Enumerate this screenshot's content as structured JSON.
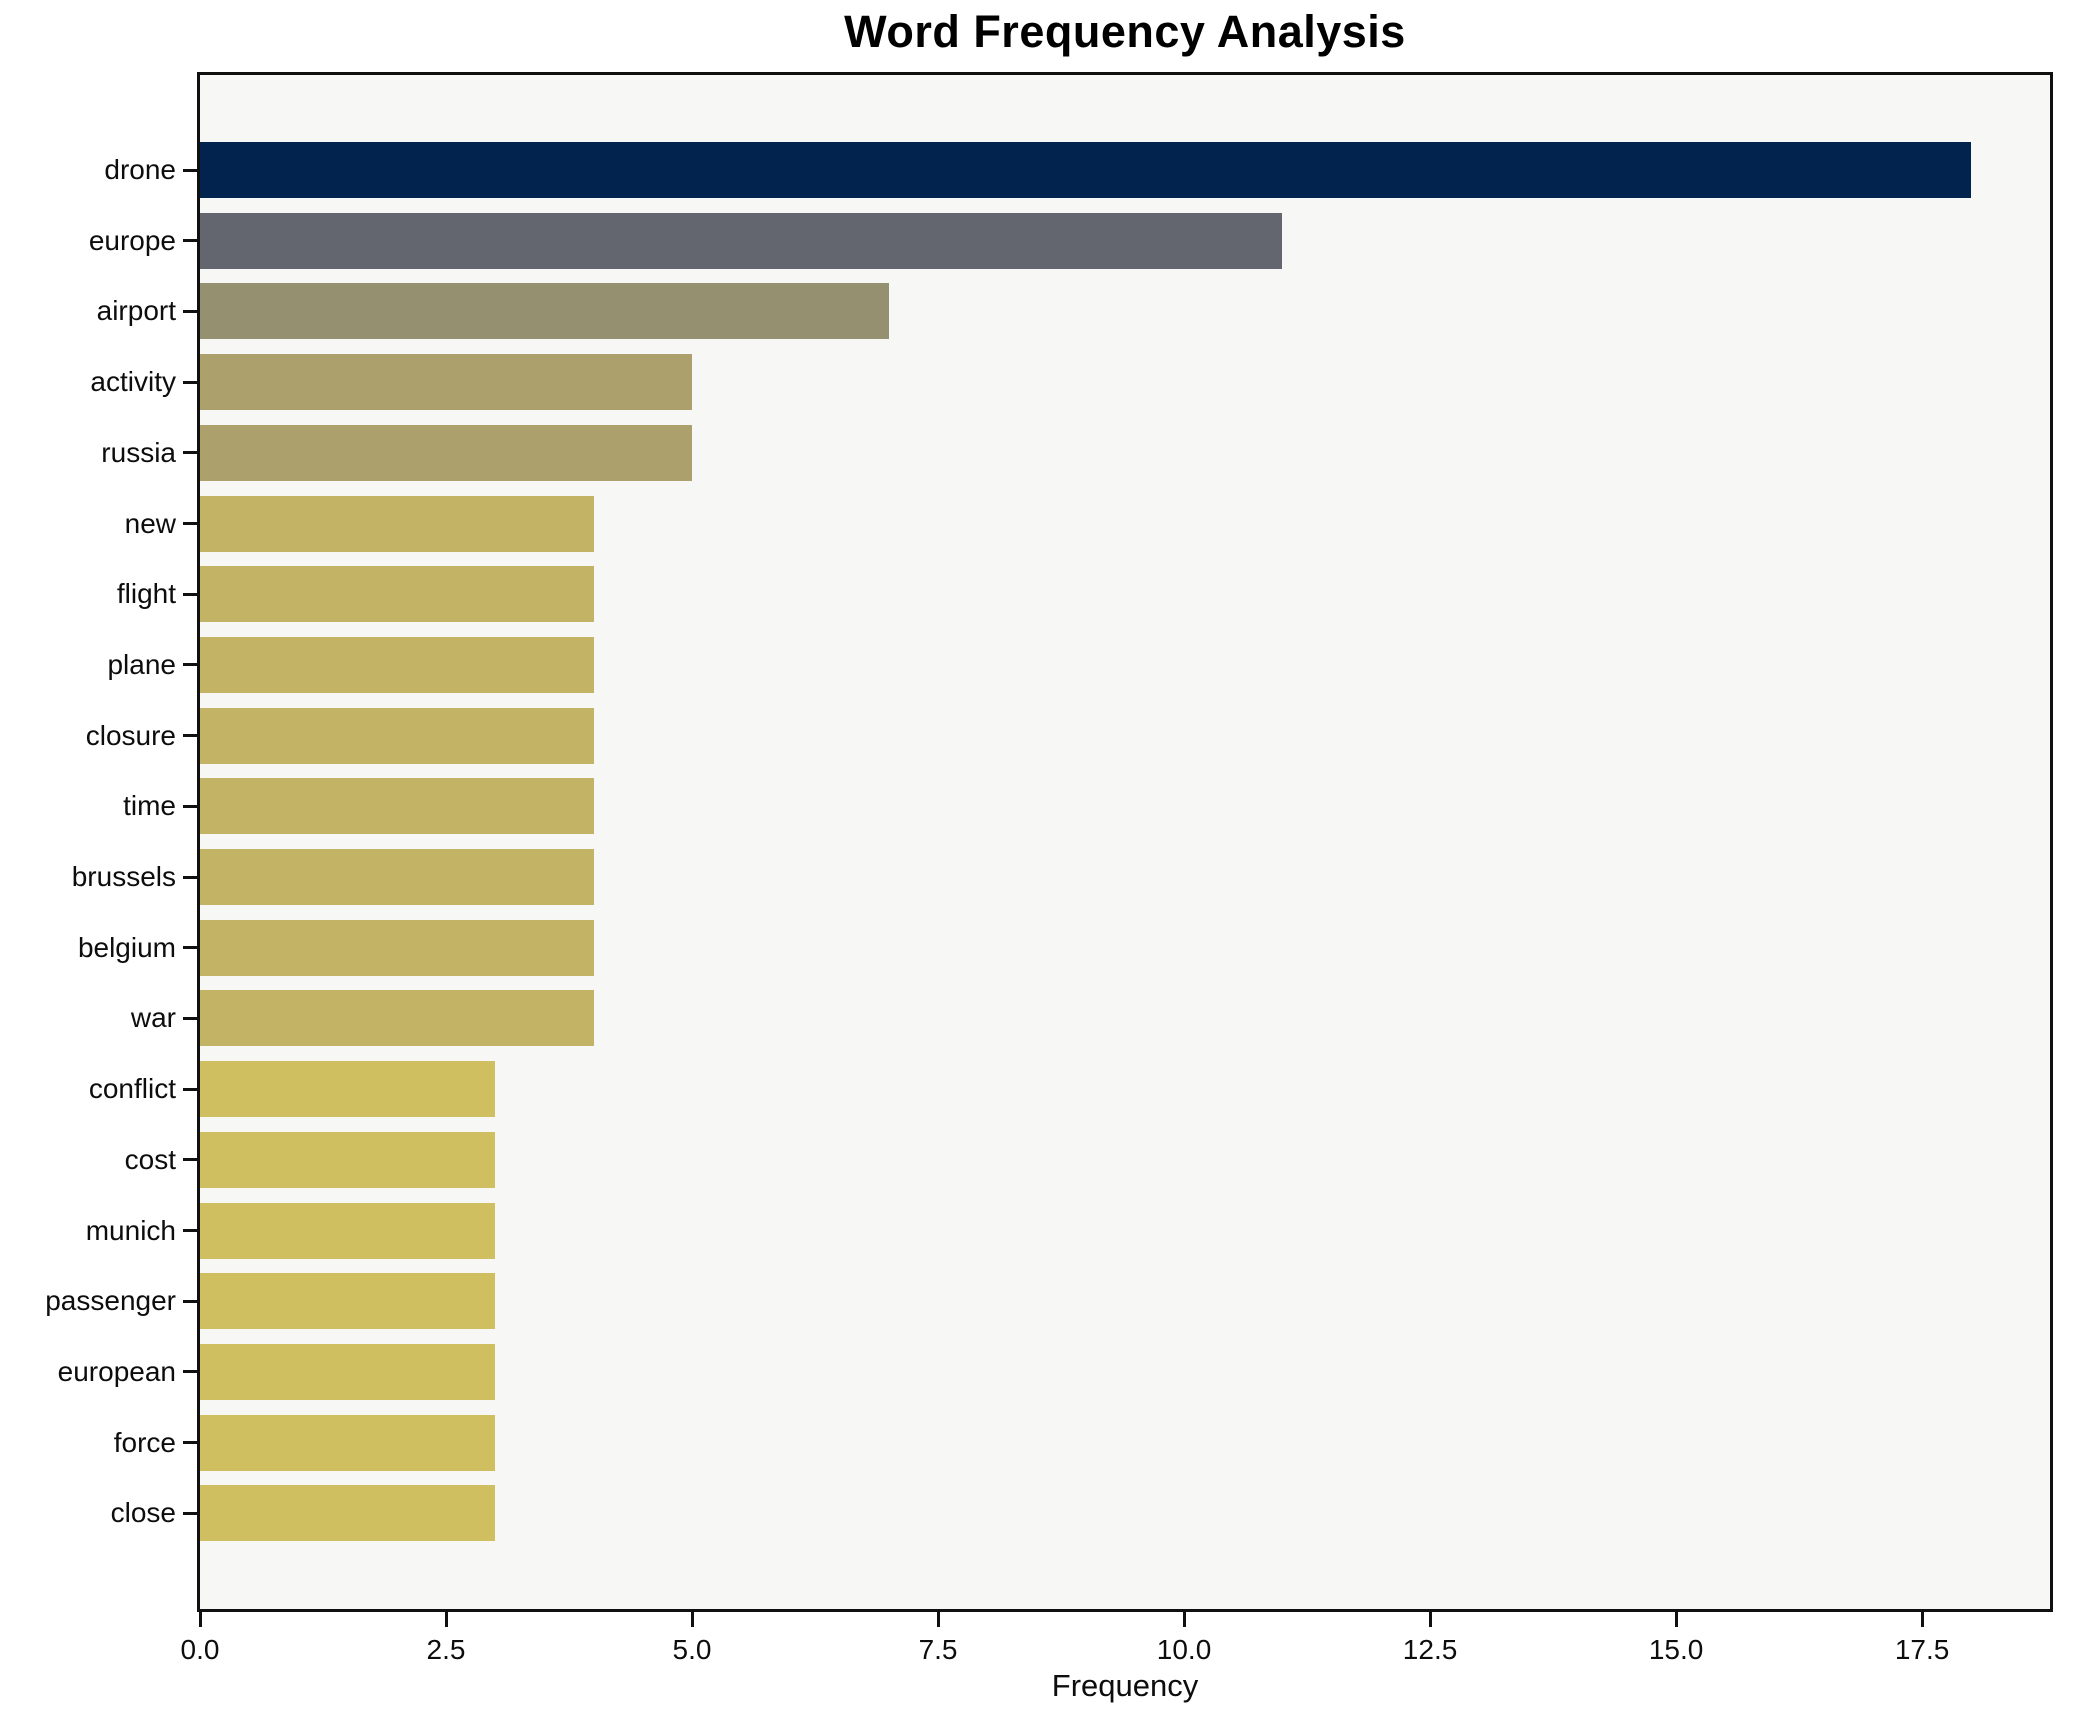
{
  "chart_data": {
    "type": "bar",
    "orientation": "horizontal",
    "title": "Word Frequency Analysis",
    "xlabel": "Frequency",
    "ylabel": "",
    "categories": [
      "drone",
      "europe",
      "airport",
      "activity",
      "russia",
      "new",
      "flight",
      "plane",
      "closure",
      "time",
      "brussels",
      "belgium",
      "war",
      "conflict",
      "cost",
      "munich",
      "passenger",
      "european",
      "force",
      "close"
    ],
    "values": [
      18,
      11,
      7,
      5,
      5,
      4,
      4,
      4,
      4,
      4,
      4,
      4,
      4,
      3,
      3,
      3,
      3,
      3,
      3,
      3
    ],
    "bar_colors": [
      "#02234e",
      "#63656f",
      "#95906f",
      "#aca16c",
      "#aca16c",
      "#c2b365",
      "#c2b365",
      "#c2b365",
      "#c2b365",
      "#c2b365",
      "#c2b365",
      "#c2b365",
      "#c2b365",
      "#cfbf60",
      "#cfbf60",
      "#cfbf60",
      "#cfbf60",
      "#cfbf60",
      "#cfbf60",
      "#cfbf60"
    ],
    "xlim": [
      0,
      18.8
    ],
    "x_ticks": [
      0,
      2.5,
      5,
      7.5,
      10,
      12.5,
      15,
      17.5
    ],
    "x_tick_labels": [
      "0.0",
      "2.5",
      "5.0",
      "7.5",
      "10.0",
      "12.5",
      "15.0",
      "17.5"
    ],
    "grid": false,
    "legend": false,
    "plot_bg": "#f7f7f5",
    "figure_bg": "#ffffff",
    "spine_color": "#101010"
  }
}
